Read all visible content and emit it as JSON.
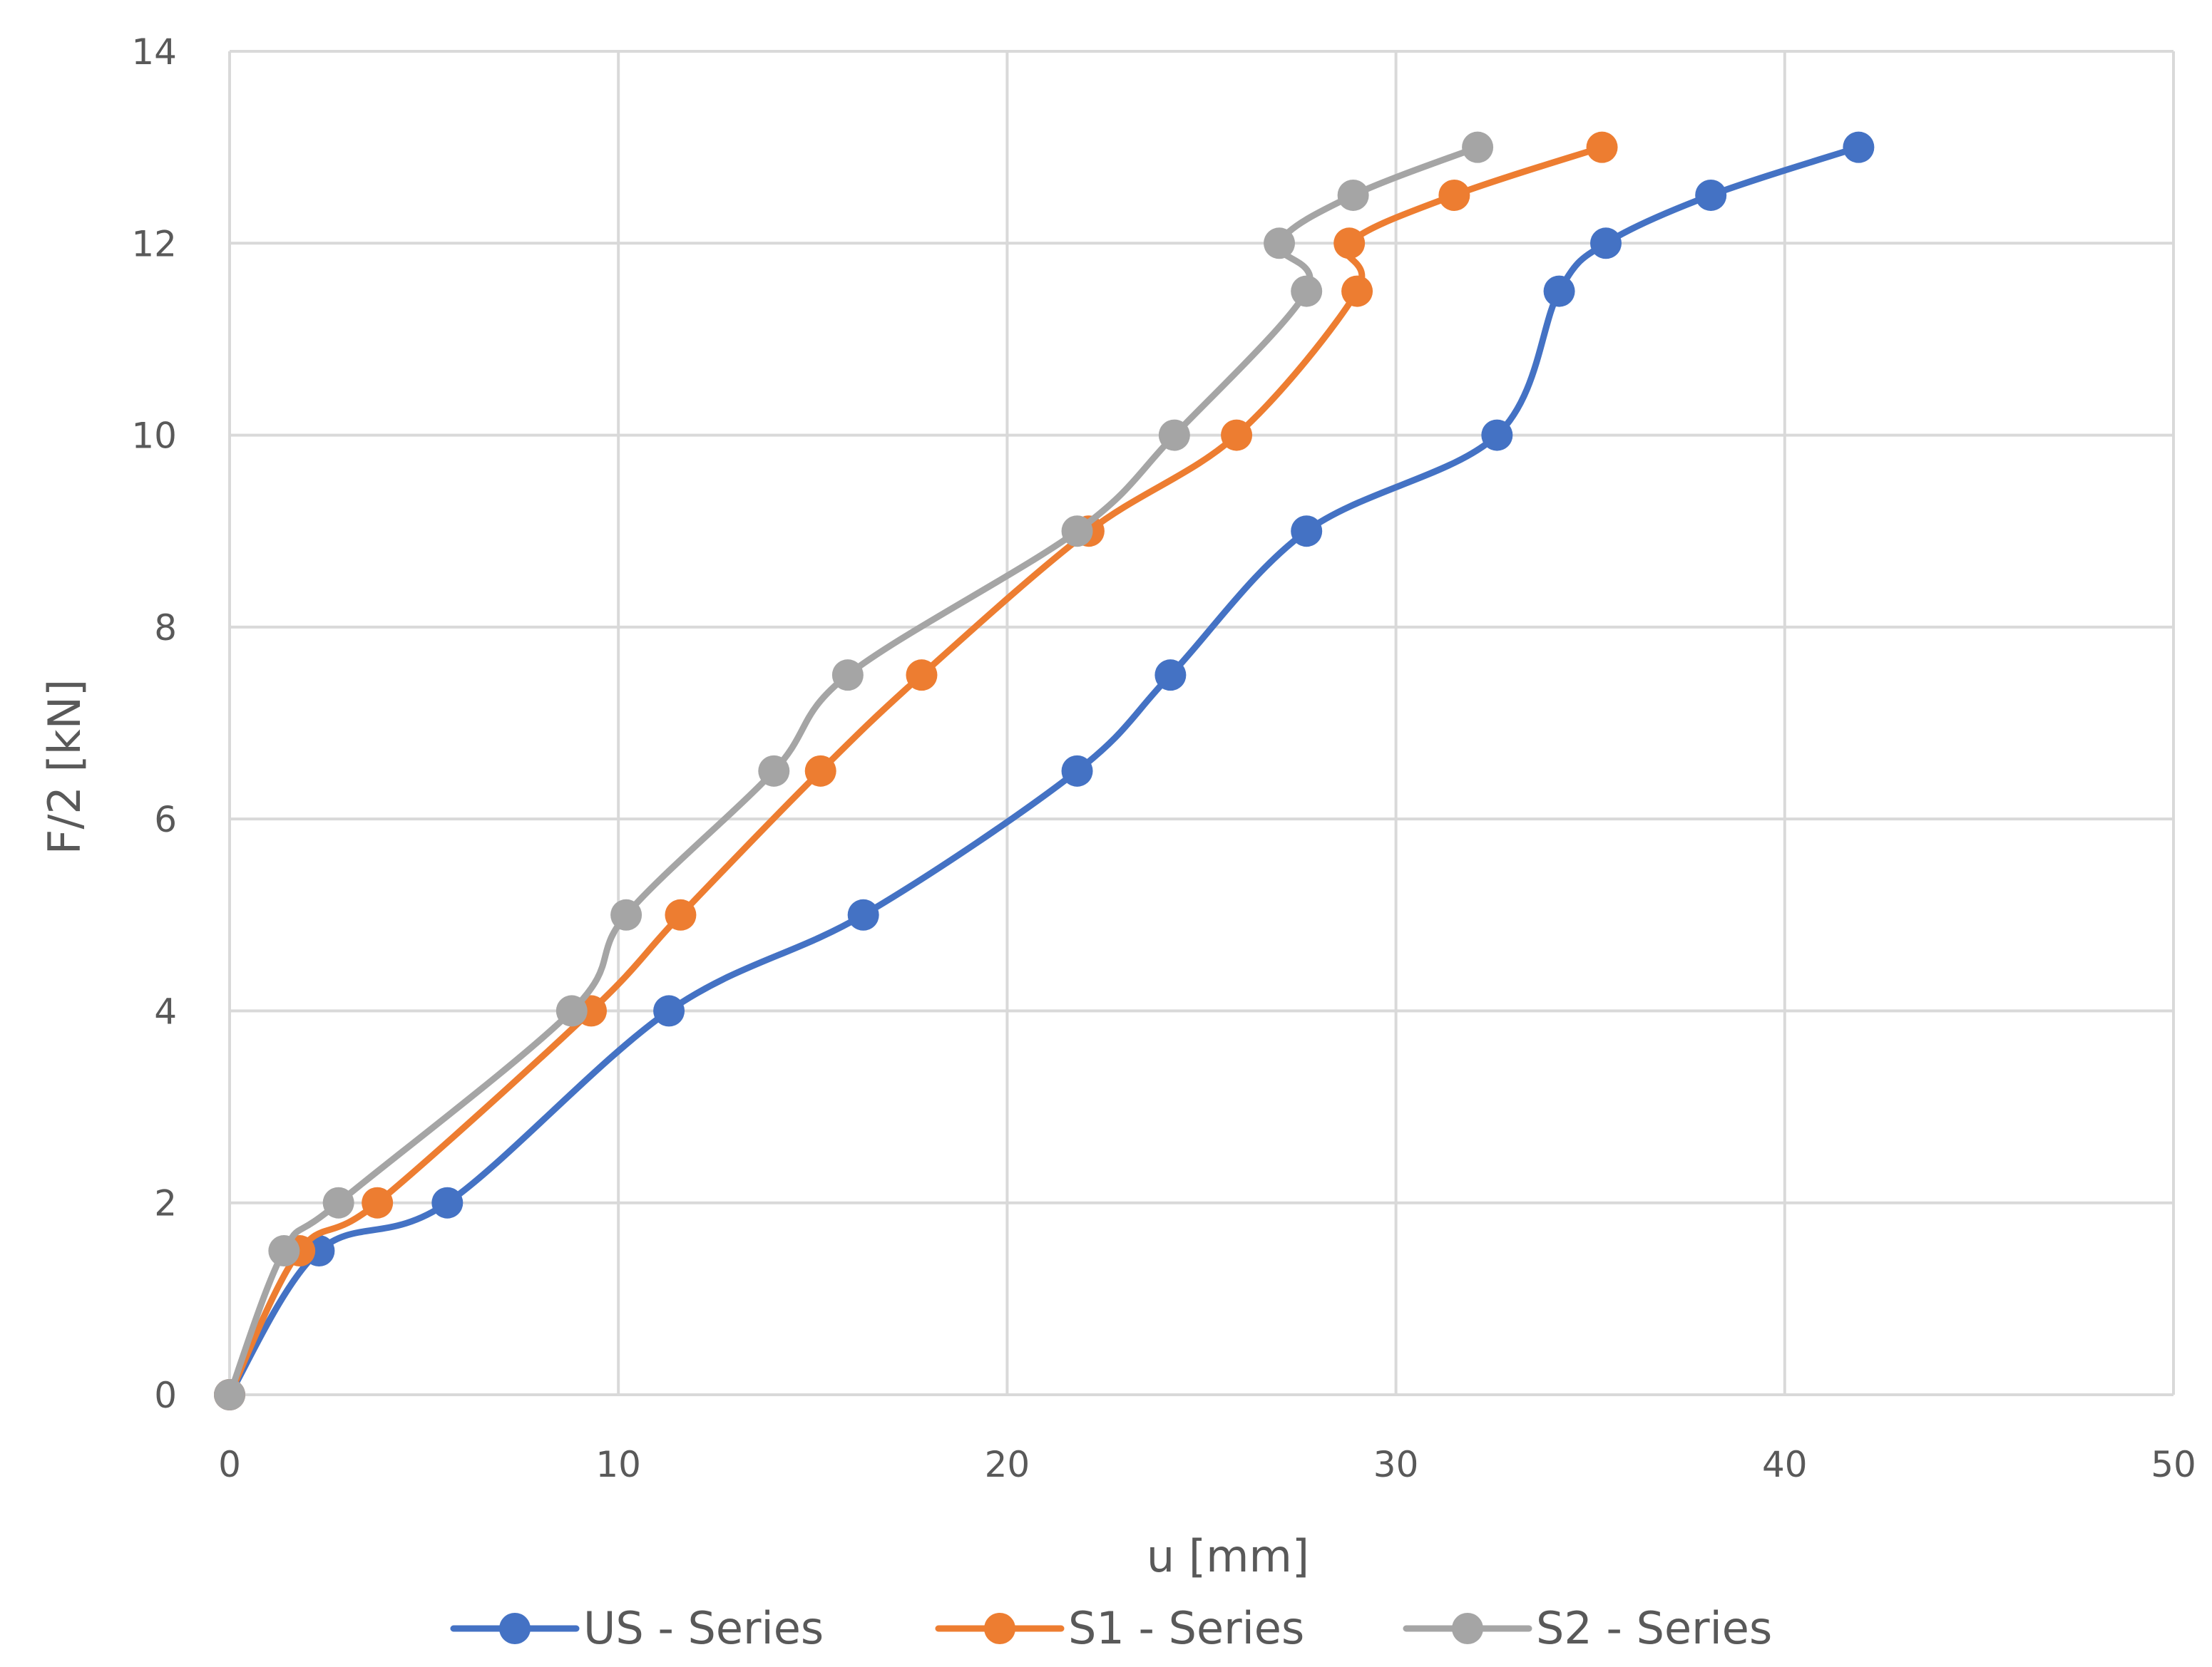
{
  "chart_data": {
    "type": "line",
    "title": "",
    "xlabel": "u [mm]",
    "ylabel": "F/2 [kN]",
    "xlim": [
      0,
      50
    ],
    "ylim": [
      0,
      14
    ],
    "xticks": [
      "0",
      "10",
      "20",
      "30",
      "40",
      "50"
    ],
    "yticks": [
      "0",
      "2",
      "4",
      "6",
      "8",
      "10",
      "12",
      "14"
    ],
    "grid": true,
    "legend_position": "bottom",
    "line_style": "smoothed-with-markers",
    "series": [
      {
        "name": "US - Series",
        "color": "#4472C4",
        "points": [
          [
            0,
            0
          ],
          [
            2.3,
            1.5
          ],
          [
            5.6,
            2
          ],
          [
            11.3,
            4
          ],
          [
            16.3,
            5
          ],
          [
            21.8,
            6.5
          ],
          [
            24.2,
            7.5
          ],
          [
            27.7,
            9
          ],
          [
            32.6,
            10
          ],
          [
            34.2,
            11.5
          ],
          [
            35.4,
            12
          ],
          [
            38.1,
            12.5
          ],
          [
            41.9,
            13
          ]
        ]
      },
      {
        "name": "S1 - Series",
        "color": "#ED7D31",
        "points": [
          [
            0,
            0
          ],
          [
            1.8,
            1.5
          ],
          [
            3.8,
            2
          ],
          [
            9.3,
            4
          ],
          [
            11.6,
            5
          ],
          [
            15.2,
            6.5
          ],
          [
            17.8,
            7.5
          ],
          [
            22.1,
            9
          ],
          [
            25.9,
            10
          ],
          [
            29.0,
            11.5
          ],
          [
            28.8,
            12
          ],
          [
            31.5,
            12.5
          ],
          [
            35.3,
            13
          ]
        ]
      },
      {
        "name": "S2 - Series",
        "color": "#A5A5A5",
        "points": [
          [
            0,
            0
          ],
          [
            1.4,
            1.5
          ],
          [
            2.8,
            2
          ],
          [
            8.8,
            4
          ],
          [
            10.2,
            5
          ],
          [
            14.0,
            6.5
          ],
          [
            15.9,
            7.5
          ],
          [
            21.8,
            9
          ],
          [
            24.3,
            10
          ],
          [
            27.7,
            11.5
          ],
          [
            27.0,
            12
          ],
          [
            28.9,
            12.5
          ],
          [
            32.1,
            13
          ]
        ]
      }
    ]
  }
}
